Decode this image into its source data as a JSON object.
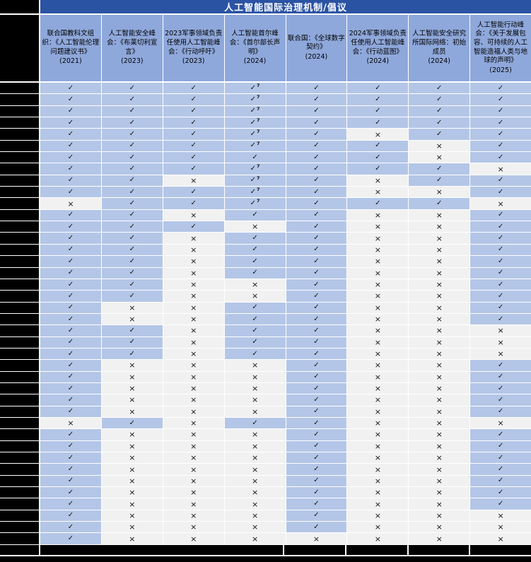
{
  "title": "人工智能国际治理机制/倡议",
  "colors": {
    "title_bg": "#2B53A4",
    "header_bg": "#8FA8DB",
    "check_bg": "#B4C6E7",
    "cross_bg": "#F1F1F1",
    "gridline": "#FFFFFF",
    "redacted": "#000000",
    "title_text": "#FFFFFF",
    "mark_text": "#111111"
  },
  "table": {
    "redacted_row_label_column": true,
    "redacted_footer_row": true,
    "marks": {
      "check": "✓",
      "cross": "×",
      "footnote": "7"
    },
    "columns": [
      {
        "label": "联合国教科文组织：《人工智能伦理问题建议书》",
        "year": "(2021)"
      },
      {
        "label": "人工智能安全峰会：《布莱切利宣言》",
        "year": "(2023)"
      },
      {
        "label": "2023军事领域负责任使用人工智能峰会：《行动呼吁》",
        "year": "(2023)"
      },
      {
        "label": "人工智能首尔峰会：《首尔部长声明》",
        "year": "(2024)"
      },
      {
        "label": "联合国：《全球数字契约》",
        "year": "(2024)"
      },
      {
        "label": "2024军事领域负责任使用人工智能峰会：《行动蓝图》",
        "year": "(2024)"
      },
      {
        "label": "人工智能安全研究所国际网络：初始成员",
        "year": "(2024)"
      },
      {
        "label": "人工智能行动峰会：《关于发展包容、可持续的人工智能造福人类与地球的声明》",
        "year": "(2025)"
      }
    ],
    "rows": [
      [
        "1",
        "1",
        "1",
        "1f",
        "1",
        "1",
        "1",
        "1"
      ],
      [
        "1",
        "1",
        "1",
        "1f",
        "1",
        "1",
        "1",
        "1"
      ],
      [
        "1",
        "1",
        "1",
        "1f",
        "1",
        "1",
        "1",
        "1"
      ],
      [
        "1",
        "1",
        "1",
        "1f",
        "1",
        "1",
        "1",
        "1"
      ],
      [
        "1",
        "1",
        "1",
        "1f",
        "1",
        "0",
        "1",
        "1"
      ],
      [
        "1",
        "1",
        "1",
        "1f",
        "1",
        "1",
        "0",
        "1"
      ],
      [
        "1",
        "1",
        "1",
        "1",
        "1",
        "1",
        "0",
        "1"
      ],
      [
        "1",
        "1",
        "1",
        "1f",
        "1",
        "1",
        "1",
        "0"
      ],
      [
        "1",
        "1",
        "0",
        "1f",
        "1",
        "0",
        "1",
        "1"
      ],
      [
        "1",
        "1",
        "1",
        "1f",
        "1",
        "0",
        "0",
        "1"
      ],
      [
        "0",
        "1",
        "1",
        "1f",
        "1",
        "1",
        "1",
        "0"
      ],
      [
        "1",
        "1",
        "0",
        "1",
        "1",
        "0",
        "0",
        "1"
      ],
      [
        "1",
        "1",
        "1",
        "0",
        "1",
        "0",
        "0",
        "1"
      ],
      [
        "1",
        "1",
        "0",
        "1",
        "1",
        "0",
        "0",
        "1"
      ],
      [
        "1",
        "1",
        "0",
        "1",
        "1",
        "0",
        "0",
        "1"
      ],
      [
        "1",
        "1",
        "0",
        "1",
        "1",
        "0",
        "0",
        "1"
      ],
      [
        "1",
        "1",
        "0",
        "1",
        "1",
        "0",
        "0",
        "1"
      ],
      [
        "1",
        "1",
        "0",
        "0",
        "1",
        "0",
        "0",
        "1"
      ],
      [
        "1",
        "1",
        "0",
        "0",
        "1",
        "0",
        "0",
        "1"
      ],
      [
        "1",
        "0",
        "0",
        "1",
        "1",
        "0",
        "0",
        "1"
      ],
      [
        "1",
        "0",
        "0",
        "1",
        "1",
        "0",
        "0",
        "1"
      ],
      [
        "1",
        "1",
        "0",
        "1",
        "1",
        "0",
        "0",
        "0"
      ],
      [
        "1",
        "1",
        "0",
        "1",
        "1",
        "0",
        "0",
        "0"
      ],
      [
        "1",
        "1",
        "0",
        "1",
        "1",
        "0",
        "0",
        "0"
      ],
      [
        "1",
        "0",
        "0",
        "0",
        "1",
        "0",
        "0",
        "1"
      ],
      [
        "1",
        "0",
        "0",
        "0",
        "1",
        "0",
        "0",
        "1"
      ],
      [
        "1",
        "0",
        "0",
        "0",
        "1",
        "0",
        "0",
        "1"
      ],
      [
        "1",
        "0",
        "0",
        "0",
        "1",
        "0",
        "0",
        "1"
      ],
      [
        "1",
        "0",
        "0",
        "0",
        "1",
        "0",
        "0",
        "1"
      ],
      [
        "0",
        "1",
        "0",
        "1",
        "1",
        "0",
        "0",
        "0"
      ],
      [
        "1",
        "0",
        "0",
        "0",
        "1",
        "0",
        "0",
        "1"
      ],
      [
        "1",
        "0",
        "0",
        "0",
        "1",
        "0",
        "0",
        "1"
      ],
      [
        "1",
        "0",
        "0",
        "0",
        "1",
        "0",
        "0",
        "1"
      ],
      [
        "1",
        "0",
        "0",
        "0",
        "1",
        "0",
        "0",
        "1"
      ],
      [
        "1",
        "0",
        "0",
        "0",
        "1",
        "0",
        "0",
        "1"
      ],
      [
        "1",
        "0",
        "0",
        "0",
        "1",
        "0",
        "0",
        "1"
      ],
      [
        "1",
        "0",
        "0",
        "0",
        "1",
        "0",
        "0",
        "1"
      ],
      [
        "1",
        "0",
        "0",
        "0",
        "1",
        "0",
        "0",
        "0"
      ],
      [
        "1",
        "0",
        "0",
        "0",
        "1",
        "0",
        "0",
        "0"
      ],
      [
        "1",
        "0",
        "0",
        "0",
        "0",
        "0",
        "0",
        "0"
      ]
    ]
  }
}
